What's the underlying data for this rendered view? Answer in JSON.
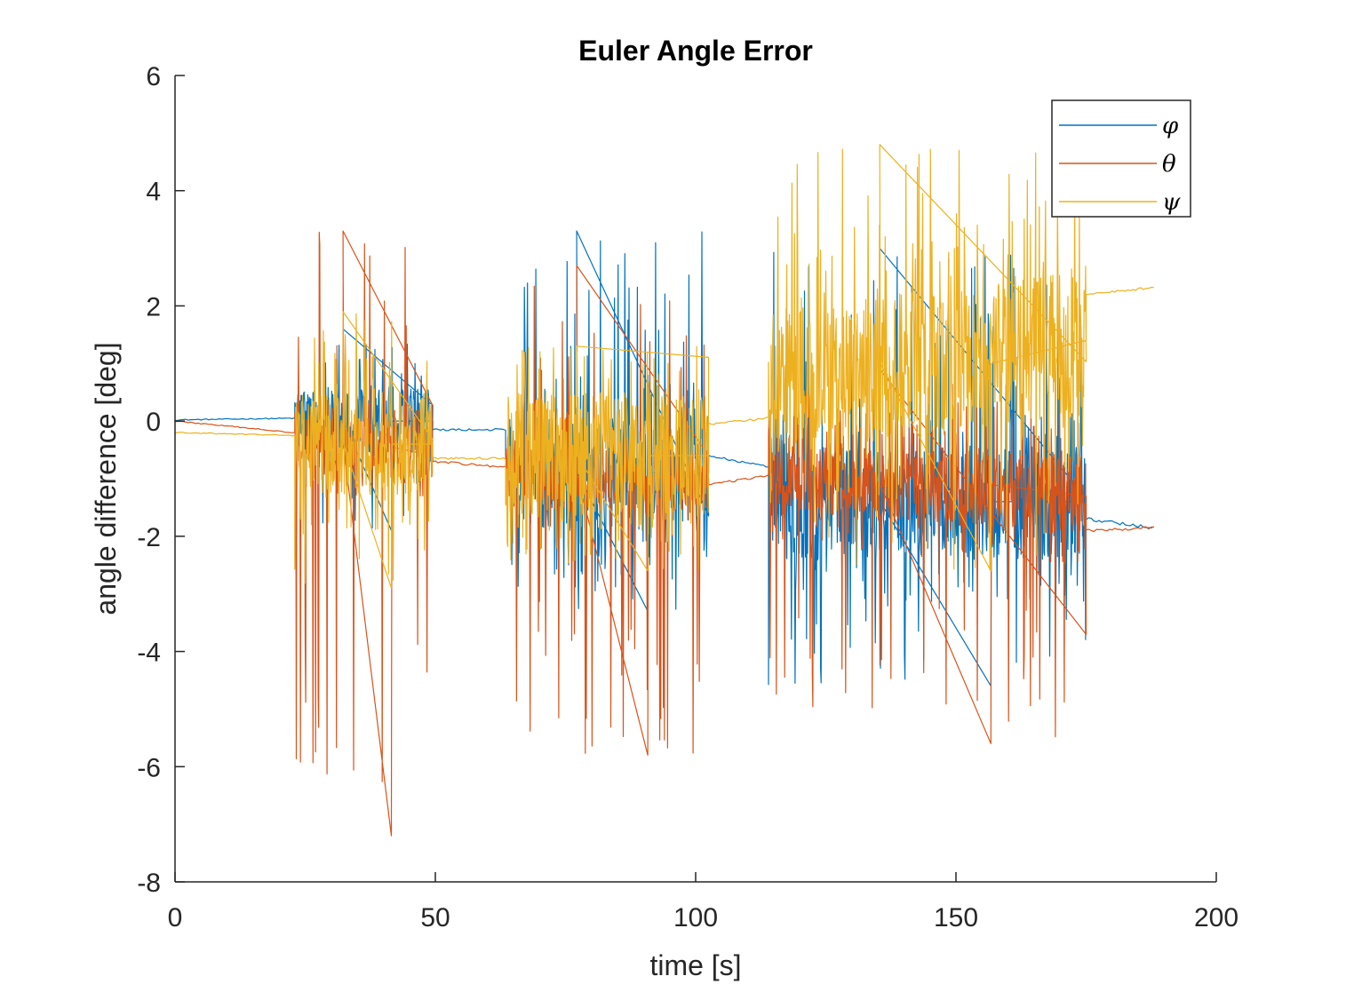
{
  "chart_data": {
    "type": "line",
    "title": "Euler Angle Error",
    "xlabel": "time [s]",
    "ylabel": "angle difference [deg]",
    "xlim": [
      0,
      200
    ],
    "ylim": [
      -8,
      6
    ],
    "xticks": [
      0,
      50,
      100,
      150,
      200
    ],
    "yticks": [
      -8,
      -6,
      -4,
      -2,
      0,
      2,
      4,
      6
    ],
    "grid": false,
    "legend_position": "top-right",
    "series": [
      {
        "name": "φ",
        "color": "#0072BD",
        "segments": [
          {
            "t0": 0,
            "t1": 23,
            "y0": 0.02,
            "y1": 0.05,
            "amp": 0.01,
            "high": 0.0,
            "low": 0.0
          },
          {
            "t0": 23,
            "t1": 49.5,
            "y0": 0,
            "y1": 0,
            "amp": 0.6,
            "high": 1.6,
            "low": -1.9
          },
          {
            "t0": 49.5,
            "t1": 63.5,
            "y0": -0.15,
            "y1": -0.15,
            "amp": 0.02,
            "high": 0.0,
            "low": 0.0
          },
          {
            "t0": 63.5,
            "t1": 102.5,
            "y0": -0.9,
            "y1": -0.9,
            "amp": 1.0,
            "high": 3.3,
            "low": -3.3
          },
          {
            "t0": 102.5,
            "t1": 114,
            "y0": -0.6,
            "y1": -0.8,
            "amp": 0.02,
            "high": 0.0,
            "low": 0.0
          },
          {
            "t0": 114,
            "t1": 175,
            "y0": -1.4,
            "y1": -1.4,
            "amp": 1.0,
            "high": 3.0,
            "low": -4.6
          },
          {
            "t0": 175,
            "t1": 188,
            "y0": -1.7,
            "y1": -1.85,
            "amp": 0.03,
            "high": 0.0,
            "low": 0.0
          }
        ]
      },
      {
        "name": "θ",
        "color": "#D95319",
        "segments": [
          {
            "t0": 0,
            "t1": 23,
            "y0": 0.0,
            "y1": -0.2,
            "amp": 0.01,
            "high": 0.0,
            "low": 0.0
          },
          {
            "t0": 23,
            "t1": 49.5,
            "y0": -0.3,
            "y1": -0.6,
            "amp": 0.5,
            "high": 3.3,
            "low": -7.2
          },
          {
            "t0": 49.5,
            "t1": 63.5,
            "y0": -0.7,
            "y1": -0.8,
            "amp": 0.02,
            "high": 0.0,
            "low": 0.0
          },
          {
            "t0": 63.5,
            "t1": 102.5,
            "y0": -0.9,
            "y1": -1.0,
            "amp": 0.6,
            "high": 2.7,
            "low": -5.8
          },
          {
            "t0": 102.5,
            "t1": 114,
            "y0": -1.1,
            "y1": -0.95,
            "amp": 0.02,
            "high": 0.0,
            "low": 0.0
          },
          {
            "t0": 114,
            "t1": 175,
            "y0": -0.9,
            "y1": -1.3,
            "amp": 0.7,
            "high": 0.9,
            "low": -5.6
          },
          {
            "t0": 175,
            "t1": 188,
            "y0": -1.9,
            "y1": -1.85,
            "amp": 0.03,
            "high": 0.0,
            "low": 0.0
          }
        ]
      },
      {
        "name": "ψ",
        "color": "#EDB120",
        "segments": [
          {
            "t0": 0,
            "t1": 23,
            "y0": -0.2,
            "y1": -0.25,
            "amp": 0.01,
            "high": 0.0,
            "low": 0.0
          },
          {
            "t0": 23,
            "t1": 49.5,
            "y0": -0.4,
            "y1": -0.4,
            "amp": 0.9,
            "high": 1.9,
            "low": -2.9
          },
          {
            "t0": 49.5,
            "t1": 63.5,
            "y0": -0.65,
            "y1": -0.65,
            "amp": 0.02,
            "high": 0.0,
            "low": 0.0
          },
          {
            "t0": 63.5,
            "t1": 102.5,
            "y0": -0.6,
            "y1": -0.6,
            "amp": 1.1,
            "high": 1.3,
            "low": -2.6
          },
          {
            "t0": 102.5,
            "t1": 114,
            "y0": -0.05,
            "y1": 0.05,
            "amp": 0.02,
            "high": 0.0,
            "low": 0.0
          },
          {
            "t0": 114,
            "t1": 175,
            "y0": 0.6,
            "y1": 1.4,
            "amp": 1.3,
            "high": 4.8,
            "low": -2.6
          },
          {
            "t0": 175,
            "t1": 188,
            "y0": 2.2,
            "y1": 2.32,
            "amp": 0.02,
            "high": 0.0,
            "low": 0.0
          }
        ]
      }
    ]
  }
}
